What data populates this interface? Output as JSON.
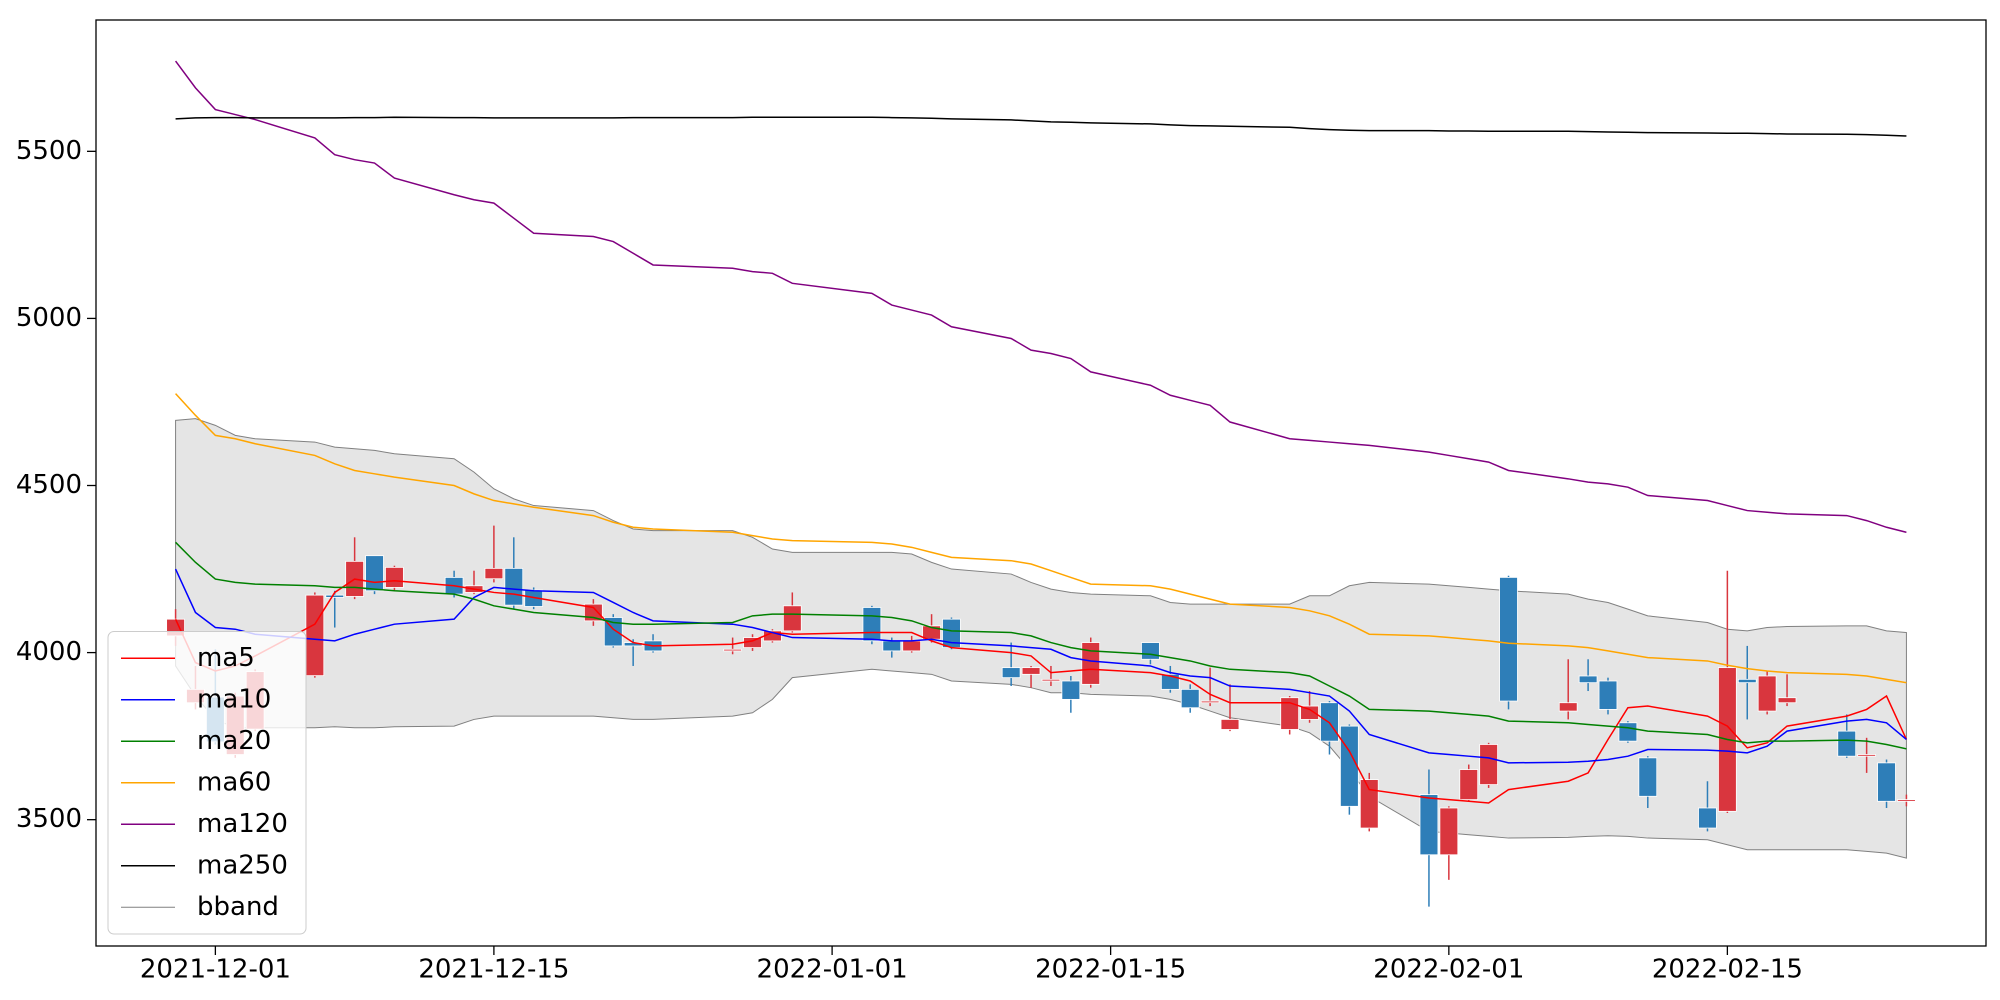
{
  "chart_data": {
    "type": "candlestick",
    "x": [
      "2021-11-29",
      "2021-11-30",
      "2021-12-01",
      "2021-12-02",
      "2021-12-03",
      "2021-12-06",
      "2021-12-07",
      "2021-12-08",
      "2021-12-09",
      "2021-12-10",
      "2021-12-13",
      "2021-12-14",
      "2021-12-15",
      "2021-12-16",
      "2021-12-17",
      "2021-12-20",
      "2021-12-21",
      "2021-12-22",
      "2021-12-23",
      "2021-12-27",
      "2021-12-28",
      "2021-12-29",
      "2021-12-30",
      "2022-01-03",
      "2022-01-04",
      "2022-01-05",
      "2022-01-06",
      "2022-01-07",
      "2022-01-10",
      "2022-01-11",
      "2022-01-12",
      "2022-01-13",
      "2022-01-14",
      "2022-01-17",
      "2022-01-18",
      "2022-01-19",
      "2022-01-20",
      "2022-01-21",
      "2022-01-24",
      "2022-01-25",
      "2022-01-26",
      "2022-01-27",
      "2022-01-28",
      "2022-01-31",
      "2022-02-01",
      "2022-02-02",
      "2022-02-03",
      "2022-02-04",
      "2022-02-07",
      "2022-02-08",
      "2022-02-09",
      "2022-02-10",
      "2022-02-11",
      "2022-02-14",
      "2022-02-15",
      "2022-02-16",
      "2022-02-17",
      "2022-02-18",
      "2022-02-21",
      "2022-02-22",
      "2022-02-23",
      "2022-02-24"
    ],
    "open": [
      4050,
      3850,
      3867,
      3695,
      3771,
      3931,
      4172,
      4168,
      4290,
      4195,
      4225,
      4180,
      4221,
      4252,
      4187,
      4095,
      4105,
      4030,
      4035,
      4005,
      4015,
      4035,
      4065,
      4135,
      4035,
      4005,
      4040,
      4100,
      3955,
      3935,
      3915,
      3915,
      3905,
      4030,
      3935,
      3890,
      3850,
      3770,
      3770,
      3800,
      3850,
      3780,
      3475,
      3575,
      3395,
      3560,
      3605,
      4225,
      3825,
      3930,
      3915,
      3790,
      3685,
      3535,
      3525,
      3920,
      3825,
      3850,
      3765,
      3690,
      3670,
      3555
    ],
    "high": [
      4130,
      3960,
      4010,
      3880,
      3950,
      4180,
      4185,
      4345,
      4290,
      4260,
      4245,
      4245,
      4380,
      4345,
      4195,
      4160,
      4115,
      4040,
      4055,
      4045,
      4055,
      4070,
      4180,
      4140,
      4045,
      4050,
      4115,
      4105,
      4030,
      3960,
      3960,
      3930,
      4045,
      4030,
      3960,
      3905,
      3955,
      3905,
      3870,
      3885,
      3855,
      3785,
      3640,
      3650,
      3540,
      3665,
      3730,
      4230,
      3980,
      3980,
      3925,
      3795,
      3690,
      3615,
      4245,
      4020,
      3945,
      3935,
      3815,
      3745,
      3680,
      3575
    ],
    "low": [
      4020,
      3830,
      3725,
      3685,
      3765,
      3925,
      4075,
      4160,
      4175,
      4185,
      4165,
      4175,
      4210,
      4130,
      4130,
      4080,
      4015,
      3960,
      4000,
      3995,
      4005,
      4030,
      4060,
      4025,
      3985,
      4000,
      4030,
      4010,
      3900,
      3895,
      3900,
      3820,
      3895,
      3965,
      3880,
      3820,
      3840,
      3765,
      3755,
      3790,
      3695,
      3515,
      3465,
      3240,
      3320,
      3555,
      3595,
      3830,
      3800,
      3885,
      3815,
      3730,
      3535,
      3465,
      3520,
      3800,
      3815,
      3840,
      3685,
      3640,
      3535,
      3540
    ],
    "close": [
      4100,
      3890,
      3733,
      3870,
      3943,
      4172,
      4165,
      4273,
      4185,
      4255,
      4175,
      4200,
      4252,
      4142,
      4138,
      4145,
      4020,
      4020,
      4005,
      4010,
      4045,
      4065,
      4140,
      4035,
      4005,
      4035,
      4080,
      4015,
      3925,
      3955,
      3920,
      3860,
      4030,
      3980,
      3890,
      3835,
      3855,
      3800,
      3865,
      3840,
      3735,
      3540,
      3620,
      3395,
      3535,
      3650,
      3725,
      3855,
      3850,
      3910,
      3830,
      3735,
      3570,
      3475,
      3955,
      3910,
      3930,
      3865,
      3690,
      3695,
      3555,
      3560
    ],
    "up_color": "#d9363e",
    "down_color": "#2e7eb8",
    "series": [
      {
        "name": "ma5",
        "color": "#ff0000",
        "values": [
          4100,
          3970,
          3945,
          3960,
          3990,
          4085,
          4180,
          4220,
          4210,
          4215,
          4200,
          4190,
          4180,
          4175,
          4165,
          4135,
          4070,
          4030,
          4020,
          4025,
          4035,
          4060,
          4055,
          4060,
          4060,
          4060,
          4035,
          4015,
          4000,
          3990,
          3940,
          3945,
          3950,
          3940,
          3930,
          3915,
          3875,
          3850,
          3850,
          3830,
          3790,
          3705,
          3590,
          3565,
          3560,
          3555,
          3550,
          3590,
          3615,
          3640,
          3740,
          3835,
          3840,
          3810,
          3780,
          3715,
          3730,
          3780,
          3810,
          3830,
          3870,
          3740
        ]
      },
      {
        "name": "ma10",
        "color": "#0000ff",
        "values": [
          4250,
          4120,
          4075,
          4070,
          4055,
          4040,
          4035,
          4055,
          4070,
          4085,
          4100,
          4165,
          4195,
          4190,
          4185,
          4180,
          4150,
          4120,
          4095,
          4085,
          4075,
          4060,
          4045,
          4040,
          4035,
          4035,
          4040,
          4030,
          4020,
          4015,
          4010,
          3985,
          3975,
          3960,
          3940,
          3930,
          3925,
          3900,
          3890,
          3880,
          3870,
          3825,
          3755,
          3700,
          3695,
          3690,
          3685,
          3670,
          3672,
          3675,
          3680,
          3690,
          3710,
          3708,
          3705,
          3700,
          3720,
          3765,
          3795,
          3800,
          3790,
          3740
        ]
      },
      {
        "name": "ma20",
        "color": "#008000",
        "values": [
          4330,
          4270,
          4220,
          4210,
          4205,
          4200,
          4195,
          4195,
          4190,
          4185,
          4175,
          4160,
          4140,
          4130,
          4120,
          4105,
          4090,
          4085,
          4085,
          4090,
          4110,
          4115,
          4115,
          4110,
          4105,
          4095,
          4075,
          4065,
          4060,
          4050,
          4030,
          4015,
          4005,
          3995,
          3985,
          3975,
          3960,
          3950,
          3940,
          3930,
          3900,
          3870,
          3830,
          3825,
          3820,
          3815,
          3810,
          3795,
          3790,
          3785,
          3780,
          3775,
          3765,
          3755,
          3740,
          3730,
          3735,
          3735,
          3738,
          3735,
          3725,
          3712
        ]
      },
      {
        "name": "ma60",
        "color": "#ffa500",
        "values": [
          4775,
          4710,
          4650,
          4640,
          4625,
          4590,
          4565,
          4545,
          4535,
          4525,
          4500,
          4475,
          4455,
          4445,
          4435,
          4410,
          4390,
          4375,
          4370,
          4360,
          4350,
          4340,
          4335,
          4330,
          4325,
          4315,
          4300,
          4285,
          4275,
          4265,
          4245,
          4225,
          4205,
          4200,
          4190,
          4175,
          4160,
          4145,
          4135,
          4125,
          4110,
          4085,
          4055,
          4050,
          4045,
          4040,
          4035,
          4028,
          4020,
          4015,
          4005,
          3995,
          3985,
          3975,
          3962,
          3952,
          3945,
          3940,
          3935,
          3930,
          3920,
          3910
        ]
      },
      {
        "name": "ma120",
        "color": "#800080",
        "values": [
          5770,
          5690,
          5625,
          5610,
          5595,
          5540,
          5490,
          5475,
          5465,
          5420,
          5370,
          5355,
          5345,
          5300,
          5255,
          5245,
          5230,
          5195,
          5160,
          5150,
          5140,
          5135,
          5105,
          5075,
          5040,
          5025,
          5010,
          4975,
          4940,
          4905,
          4895,
          4880,
          4840,
          4800,
          4770,
          4755,
          4740,
          4690,
          4640,
          4635,
          4630,
          4625,
          4620,
          4600,
          4590,
          4580,
          4570,
          4545,
          4520,
          4510,
          4505,
          4495,
          4470,
          4455,
          4440,
          4425,
          4420,
          4415,
          4410,
          4395,
          4375,
          4360
        ]
      },
      {
        "name": "ma250",
        "color": "#000000",
        "values": [
          5597,
          5600,
          5601,
          5601,
          5600,
          5600,
          5600,
          5601,
          5601,
          5602,
          5601,
          5601,
          5600,
          5600,
          5600,
          5600,
          5600,
          5601,
          5601,
          5601,
          5602,
          5602,
          5602,
          5602,
          5601,
          5600,
          5599,
          5597,
          5594,
          5591,
          5588,
          5587,
          5585,
          5582,
          5579,
          5577,
          5576,
          5575,
          5572,
          5568,
          5565,
          5563,
          5562,
          5562,
          5561,
          5561,
          5560,
          5560,
          5560,
          5559,
          5558,
          5557,
          5556,
          5555,
          5554,
          5554,
          5553,
          5552,
          5551,
          5550,
          5548,
          5546
        ]
      }
    ],
    "band": {
      "name": "bband",
      "color": "#808080",
      "fill": "#e5e5e5",
      "upper": [
        4695,
        4700,
        4680,
        4650,
        4640,
        4630,
        4615,
        4610,
        4605,
        4595,
        4580,
        4540,
        4490,
        4460,
        4440,
        4425,
        4395,
        4370,
        4365,
        4365,
        4345,
        4310,
        4300,
        4300,
        4300,
        4295,
        4270,
        4250,
        4235,
        4210,
        4190,
        4180,
        4175,
        4170,
        4150,
        4145,
        4145,
        4145,
        4145,
        4170,
        4170,
        4200,
        4210,
        4205,
        4200,
        4195,
        4190,
        4185,
        4175,
        4160,
        4150,
        4130,
        4110,
        4090,
        4070,
        4065,
        4075,
        4078,
        4080,
        4080,
        4065,
        4060
      ],
      "lower": [
        3960,
        3870,
        3800,
        3775,
        3775,
        3775,
        3778,
        3775,
        3775,
        3778,
        3780,
        3800,
        3810,
        3810,
        3810,
        3810,
        3805,
        3800,
        3800,
        3810,
        3820,
        3860,
        3925,
        3950,
        3945,
        3940,
        3935,
        3915,
        3905,
        3895,
        3880,
        3880,
        3875,
        3870,
        3860,
        3845,
        3825,
        3805,
        3780,
        3760,
        3720,
        3650,
        3570,
        3465,
        3460,
        3455,
        3450,
        3445,
        3447,
        3450,
        3452,
        3450,
        3445,
        3440,
        3425,
        3410,
        3410,
        3410,
        3410,
        3405,
        3400,
        3385
      ]
    },
    "xlim": [
      "2021-11-25",
      "2022-02-28"
    ],
    "xticks": [
      "2021-12-01",
      "2021-12-15",
      "2022-01-01",
      "2022-01-15",
      "2022-02-01",
      "2022-02-15"
    ],
    "ylim": [
      3122,
      5893
    ],
    "yticks": [
      3500,
      4000,
      4500,
      5000,
      5500
    ],
    "legend": "lower left"
  }
}
